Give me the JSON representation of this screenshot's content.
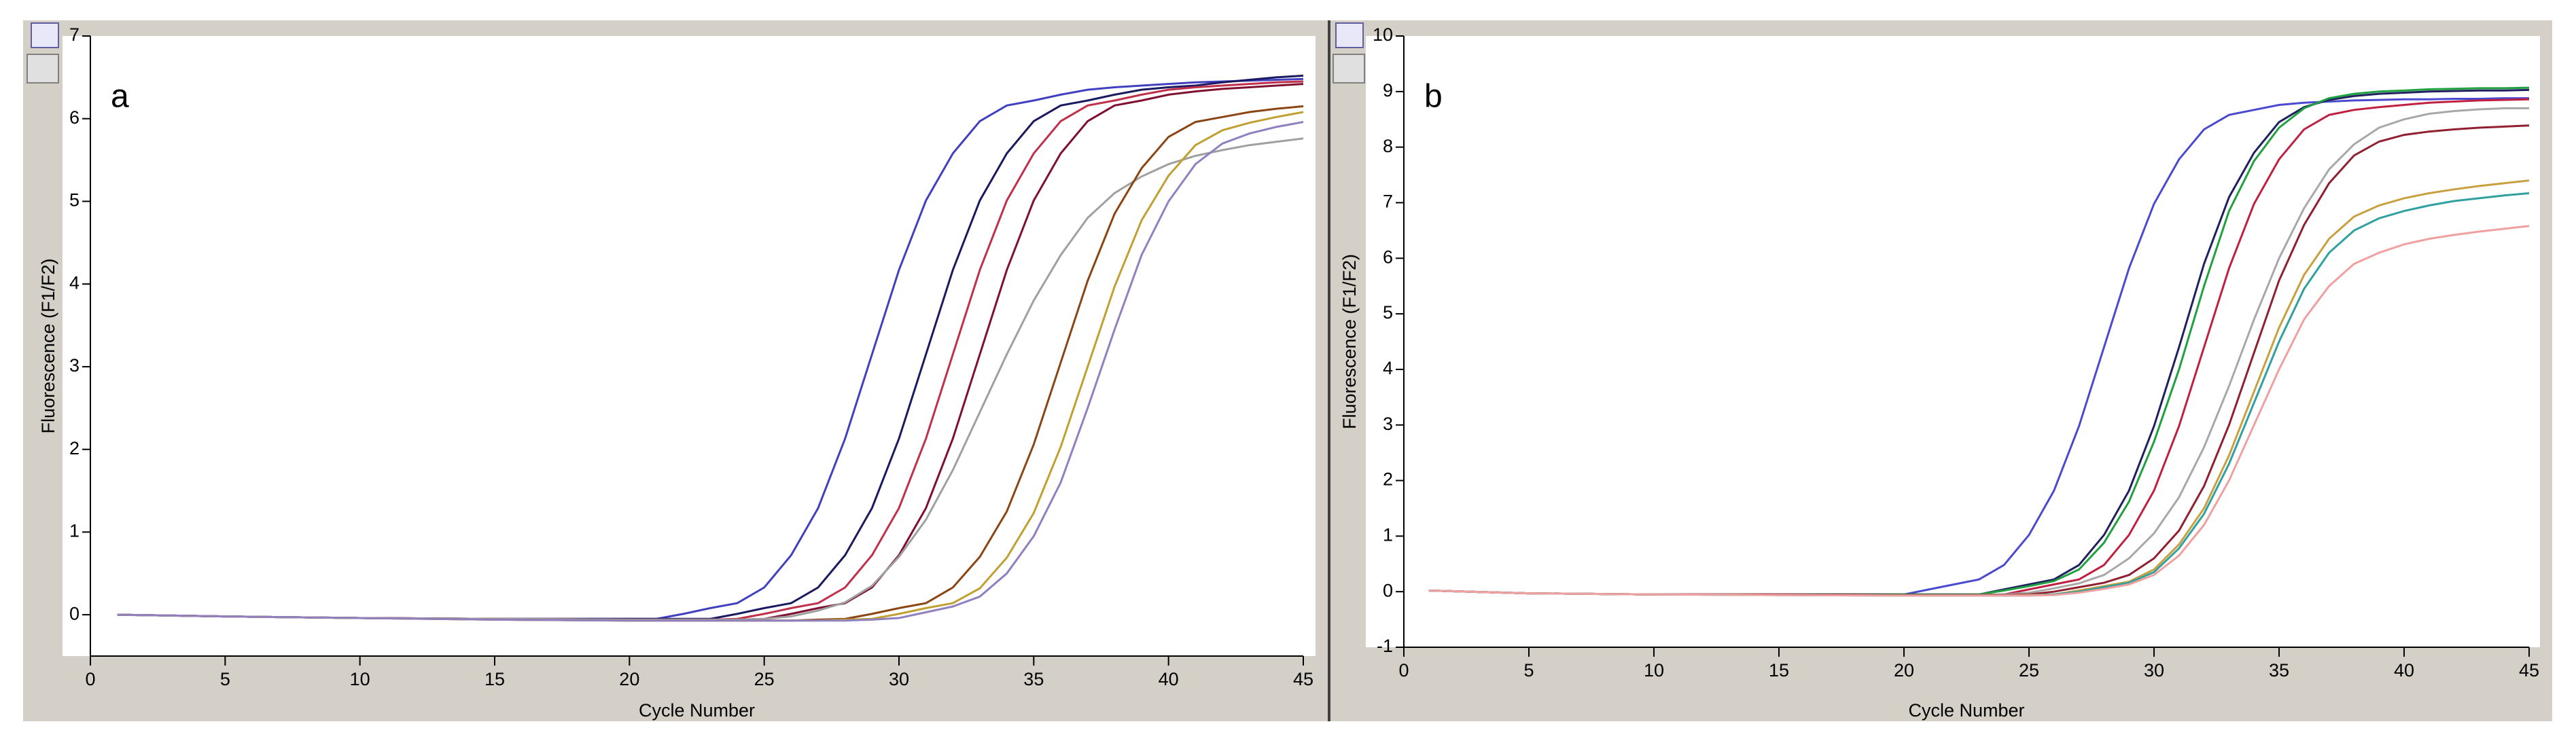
{
  "chart_data": [
    {
      "type": "line",
      "title": "a",
      "xlabel": "Cycle Number",
      "ylabel": "Fluorescence (F1/F2)",
      "xlim": [
        0,
        45
      ],
      "ylim": [
        -0.5,
        7
      ],
      "xticks": [
        0,
        5,
        10,
        15,
        20,
        25,
        30,
        35,
        40,
        45
      ],
      "yticks": [
        0,
        1,
        2,
        3,
        4,
        5,
        6,
        7
      ],
      "grid": false,
      "x": [
        1,
        5,
        10,
        15,
        20,
        21,
        22,
        23,
        24,
        25,
        26,
        27,
        28,
        29,
        30,
        31,
        32,
        33,
        34,
        35,
        36,
        37,
        38,
        39,
        40,
        41,
        42,
        43,
        44,
        45
      ],
      "series": [
        {
          "color": "#4040c0",
          "values": [
            0,
            -0.02,
            -0.04,
            -0.05,
            -0.05,
            -0.05,
            0.01,
            0.08,
            0.14,
            0.33,
            0.72,
            1.29,
            2.13,
            3.15,
            4.17,
            5.01,
            5.58,
            5.97,
            6.16,
            6.22,
            6.29,
            6.35,
            6.38,
            6.4,
            6.42,
            6.44,
            6.45,
            6.46,
            6.47,
            6.48
          ]
        },
        {
          "color": "#1a1a60",
          "values": [
            0,
            -0.02,
            -0.04,
            -0.05,
            -0.05,
            -0.05,
            -0.05,
            -0.05,
            0.01,
            0.08,
            0.14,
            0.33,
            0.72,
            1.29,
            2.13,
            3.15,
            4.17,
            5.01,
            5.58,
            5.97,
            6.16,
            6.22,
            6.29,
            6.35,
            6.38,
            6.4,
            6.44,
            6.47,
            6.5,
            6.52
          ]
        },
        {
          "color": "#c0304a",
          "values": [
            0,
            -0.02,
            -0.04,
            -0.05,
            -0.06,
            -0.06,
            -0.06,
            -0.06,
            -0.05,
            0.01,
            0.08,
            0.14,
            0.33,
            0.72,
            1.29,
            2.13,
            3.15,
            4.17,
            5.01,
            5.58,
            5.97,
            6.16,
            6.22,
            6.29,
            6.35,
            6.38,
            6.4,
            6.42,
            6.44,
            6.45
          ]
        },
        {
          "color": "#801030",
          "values": [
            0,
            -0.02,
            -0.04,
            -0.05,
            -0.06,
            -0.06,
            -0.06,
            -0.06,
            -0.06,
            -0.05,
            0.01,
            0.08,
            0.14,
            0.33,
            0.72,
            1.29,
            2.13,
            3.15,
            4.17,
            5.01,
            5.58,
            5.97,
            6.16,
            6.22,
            6.29,
            6.33,
            6.36,
            6.38,
            6.4,
            6.42
          ]
        },
        {
          "color": "#a0a0a0",
          "values": [
            0,
            -0.02,
            -0.04,
            -0.05,
            -0.06,
            -0.06,
            -0.06,
            -0.06,
            -0.06,
            -0.05,
            -0.02,
            0.05,
            0.15,
            0.35,
            0.7,
            1.15,
            1.75,
            2.45,
            3.15,
            3.8,
            4.35,
            4.8,
            5.1,
            5.3,
            5.45,
            5.55,
            5.62,
            5.68,
            5.72,
            5.76
          ]
        },
        {
          "color": "#8b4513",
          "values": [
            0,
            -0.02,
            -0.04,
            -0.06,
            -0.07,
            -0.07,
            -0.07,
            -0.07,
            -0.07,
            -0.07,
            -0.07,
            -0.06,
            -0.05,
            0.01,
            0.08,
            0.14,
            0.33,
            0.7,
            1.25,
            2.06,
            3.05,
            4.04,
            4.85,
            5.4,
            5.78,
            5.96,
            6.02,
            6.08,
            6.12,
            6.15
          ]
        },
        {
          "color": "#c0a030",
          "values": [
            0,
            -0.02,
            -0.04,
            -0.06,
            -0.07,
            -0.07,
            -0.07,
            -0.07,
            -0.07,
            -0.07,
            -0.07,
            -0.07,
            -0.06,
            -0.05,
            0.01,
            0.08,
            0.14,
            0.32,
            0.69,
            1.23,
            2.03,
            3.0,
            3.97,
            4.77,
            5.31,
            5.68,
            5.86,
            5.95,
            6.02,
            6.08
          ]
        },
        {
          "color": "#9080c0",
          "values": [
            0,
            -0.02,
            -0.04,
            -0.06,
            -0.07,
            -0.07,
            -0.07,
            -0.07,
            -0.07,
            -0.07,
            -0.07,
            -0.07,
            -0.07,
            -0.06,
            -0.04,
            0.03,
            0.1,
            0.22,
            0.5,
            0.95,
            1.6,
            2.5,
            3.45,
            4.35,
            5.0,
            5.45,
            5.7,
            5.82,
            5.9,
            5.96
          ]
        }
      ]
    },
    {
      "type": "line",
      "title": "b",
      "xlabel": "Cycle Number",
      "ylabel": "Fluorescence (F1/F2)",
      "xlim": [
        0,
        45
      ],
      "ylim": [
        -1,
        10
      ],
      "xticks": [
        0,
        5,
        10,
        15,
        20,
        25,
        30,
        35,
        40,
        45
      ],
      "yticks": [
        -1,
        0,
        1,
        2,
        3,
        4,
        5,
        6,
        7,
        8,
        9,
        10
      ],
      "grid": false,
      "x": [
        1,
        5,
        10,
        15,
        20,
        21,
        22,
        23,
        24,
        25,
        26,
        27,
        28,
        29,
        30,
        31,
        32,
        33,
        34,
        35,
        36,
        37,
        38,
        39,
        40,
        41,
        42,
        43,
        44,
        45
      ],
      "series": [
        {
          "color": "#4a4ad0",
          "values": [
            0.02,
            -0.03,
            -0.05,
            -0.05,
            -0.05,
            0.04,
            0.13,
            0.22,
            0.48,
            1.02,
            1.82,
            2.98,
            4.4,
            5.82,
            6.98,
            7.78,
            8.32,
            8.58,
            8.67,
            8.76,
            8.8,
            8.82,
            8.84,
            8.85,
            8.86,
            8.86,
            8.87,
            8.87,
            8.88,
            8.88
          ]
        },
        {
          "color": "#202060",
          "values": [
            0.02,
            -0.03,
            -0.05,
            -0.05,
            -0.05,
            -0.05,
            -0.05,
            -0.05,
            0.04,
            0.13,
            0.22,
            0.48,
            1.02,
            1.82,
            2.98,
            4.4,
            5.9,
            7.1,
            7.9,
            8.45,
            8.72,
            8.85,
            8.92,
            8.96,
            8.98,
            9.0,
            9.01,
            9.02,
            9.02,
            9.03
          ]
        },
        {
          "color": "#20a040",
          "values": [
            0.02,
            -0.03,
            -0.05,
            -0.05,
            -0.05,
            -0.05,
            -0.05,
            -0.05,
            0.02,
            0.1,
            0.19,
            0.4,
            0.88,
            1.62,
            2.7,
            4.0,
            5.5,
            6.85,
            7.75,
            8.35,
            8.7,
            8.88,
            8.96,
            9.0,
            9.02,
            9.04,
            9.05,
            9.06,
            9.06,
            9.07
          ]
        },
        {
          "color": "#c02040",
          "values": [
            0.02,
            -0.03,
            -0.05,
            -0.05,
            -0.06,
            -0.06,
            -0.06,
            -0.06,
            -0.05,
            0.04,
            0.13,
            0.22,
            0.48,
            1.02,
            1.82,
            2.98,
            4.4,
            5.82,
            6.98,
            7.78,
            8.32,
            8.58,
            8.67,
            8.72,
            8.76,
            8.8,
            8.82,
            8.84,
            8.85,
            8.86
          ]
        },
        {
          "color": "#a8a8a8",
          "values": [
            0.02,
            -0.03,
            -0.05,
            -0.05,
            -0.06,
            -0.06,
            -0.06,
            -0.06,
            -0.05,
            -0.02,
            0.06,
            0.15,
            0.3,
            0.6,
            1.05,
            1.7,
            2.6,
            3.7,
            4.9,
            6.0,
            6.9,
            7.6,
            8.05,
            8.35,
            8.5,
            8.6,
            8.65,
            8.68,
            8.7,
            8.7
          ]
        },
        {
          "color": "#902030",
          "values": [
            0.02,
            -0.03,
            -0.05,
            -0.05,
            -0.06,
            -0.06,
            -0.06,
            -0.06,
            -0.06,
            -0.05,
            0.0,
            0.08,
            0.16,
            0.3,
            0.6,
            1.1,
            1.9,
            3.0,
            4.3,
            5.6,
            6.6,
            7.35,
            7.85,
            8.1,
            8.22,
            8.28,
            8.32,
            8.35,
            8.37,
            8.39
          ]
        },
        {
          "color": "#c8a040",
          "values": [
            0.02,
            -0.03,
            -0.05,
            -0.06,
            -0.07,
            -0.07,
            -0.07,
            -0.07,
            -0.07,
            -0.06,
            -0.05,
            0.02,
            0.1,
            0.18,
            0.4,
            0.85,
            1.5,
            2.45,
            3.6,
            4.75,
            5.7,
            6.35,
            6.75,
            6.95,
            7.08,
            7.17,
            7.24,
            7.3,
            7.35,
            7.4
          ]
        },
        {
          "color": "#30a0a0",
          "values": [
            0.02,
            -0.03,
            -0.05,
            -0.06,
            -0.07,
            -0.07,
            -0.07,
            -0.07,
            -0.07,
            -0.07,
            -0.05,
            0.0,
            0.08,
            0.16,
            0.35,
            0.78,
            1.4,
            2.3,
            3.4,
            4.5,
            5.45,
            6.1,
            6.5,
            6.72,
            6.85,
            6.95,
            7.03,
            7.08,
            7.13,
            7.17
          ]
        },
        {
          "color": "#f0a0a0",
          "values": [
            0.02,
            -0.03,
            -0.05,
            -0.06,
            -0.07,
            -0.07,
            -0.07,
            -0.07,
            -0.07,
            -0.07,
            -0.06,
            -0.02,
            0.05,
            0.13,
            0.3,
            0.65,
            1.2,
            2.0,
            3.0,
            4.0,
            4.9,
            5.5,
            5.9,
            6.1,
            6.25,
            6.35,
            6.42,
            6.48,
            6.53,
            6.58
          ]
        }
      ]
    }
  ]
}
